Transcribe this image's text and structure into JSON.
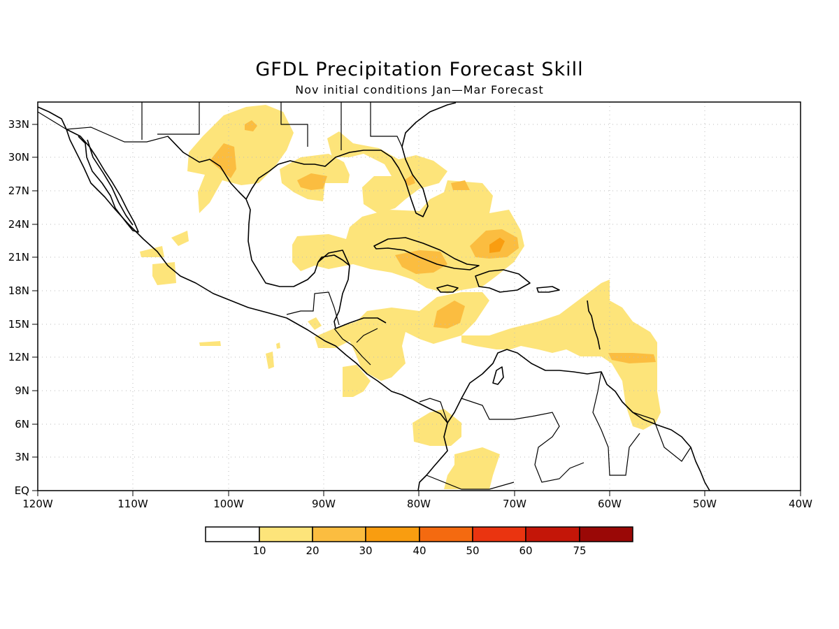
{
  "title": "GFDL Precipitation Forecast Skill",
  "subtitle": "Nov initial conditions  Jan—Mar Forecast",
  "map": {
    "lon_labels": [
      "120W",
      "110W",
      "100W",
      "90W",
      "80W",
      "70W",
      "60W",
      "50W",
      "40W"
    ],
    "lat_labels": [
      "EQ",
      "3N",
      "6N",
      "9N",
      "12N",
      "15N",
      "18N",
      "21N",
      "24N",
      "27N",
      "30N",
      "33N"
    ],
    "grid": "dotted",
    "extent": {
      "lon": [
        -120,
        -40
      ],
      "lat": [
        0,
        35
      ]
    }
  },
  "colorbar": {
    "labels": [
      "10",
      "20",
      "30",
      "40",
      "50",
      "60",
      "75"
    ],
    "colors": [
      "#ffffff",
      "#fde47a",
      "#fbbd40",
      "#f99d10",
      "#f46a10",
      "#ea3410",
      "#c41608",
      "#9a0806"
    ]
  },
  "colors": {
    "level_10_20": "#fde47a",
    "level_20_30": "#fbbd40",
    "level_30_40": "#f99d10"
  }
}
